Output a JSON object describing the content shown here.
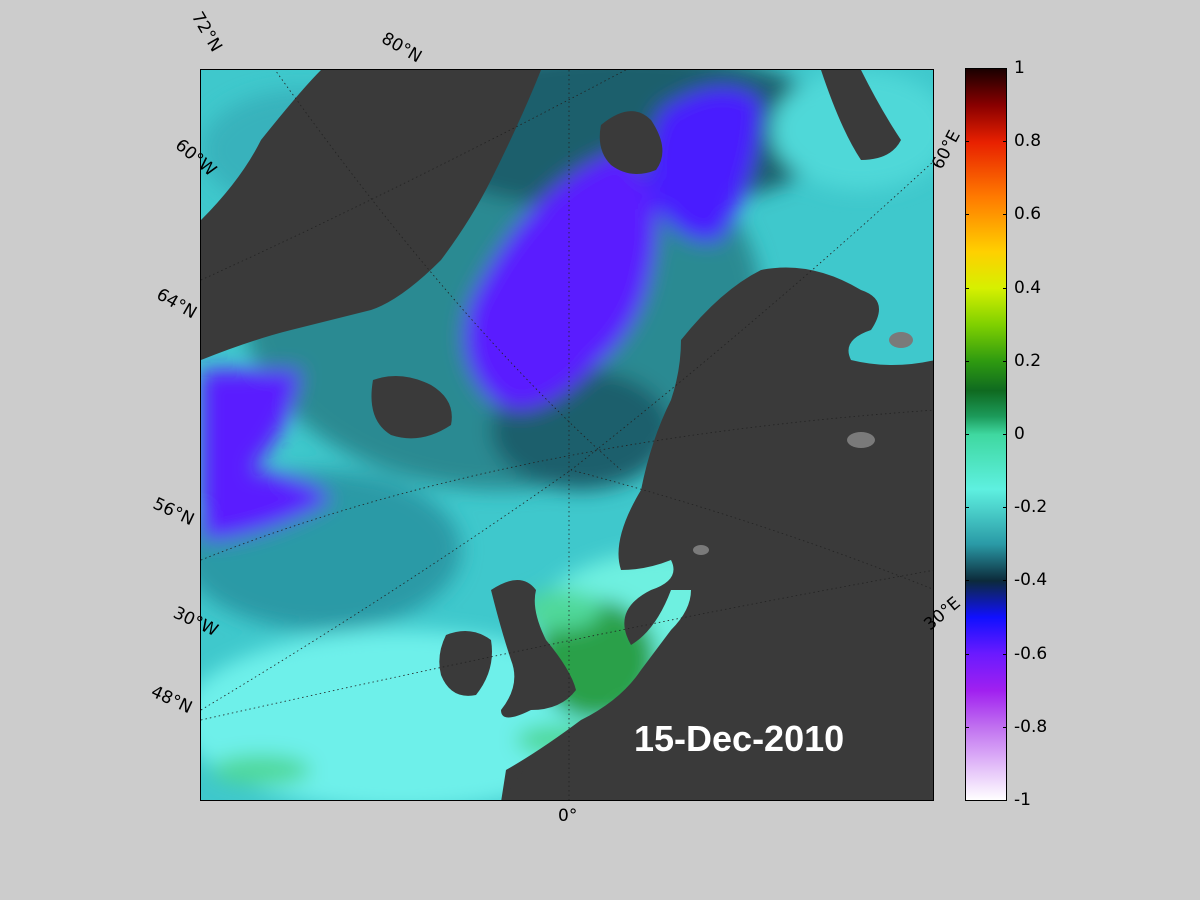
{
  "map": {
    "date": "15-Dec-2010",
    "graticule_labels": {
      "lat_72": "72°N",
      "lat_80": "80°N",
      "lon_60w": "60°W",
      "lat_64": "64°N",
      "lat_56": "56°N",
      "lon_30w": "30°W",
      "lat_48": "48°N",
      "lon_0": "0°",
      "lon_30e": "30°E",
      "lon_60e": "60°E"
    },
    "colors": {
      "background": "#cccccc",
      "land": "#3a3a3a",
      "ocean": "#3fc8cc",
      "deep_ocean": "#2a6f78",
      "negative_anomaly": "#5a1aff",
      "positive_anomaly": "#35a04a"
    }
  },
  "colorbar": {
    "ticks": [
      "1",
      "0.8",
      "0.6",
      "0.4",
      "0.2",
      "0",
      "-0.2",
      "-0.4",
      "-0.6",
      "-0.8",
      "-1"
    ],
    "tick_values": [
      1,
      0.8,
      0.6,
      0.4,
      0.2,
      0,
      -0.2,
      -0.4,
      -0.6,
      -0.8,
      -1
    ],
    "range": [
      -1,
      1
    ],
    "stops": [
      {
        "v": 1,
        "c": "#1a0000"
      },
      {
        "v": 0.9,
        "c": "#8a0000"
      },
      {
        "v": 0.8,
        "c": "#e82000"
      },
      {
        "v": 0.65,
        "c": "#ff7a00"
      },
      {
        "v": 0.5,
        "c": "#ffd000"
      },
      {
        "v": 0.4,
        "c": "#d6f000"
      },
      {
        "v": 0.3,
        "c": "#7fd000"
      },
      {
        "v": 0.2,
        "c": "#2e9a10"
      },
      {
        "v": 0.12,
        "c": "#0f6a20"
      },
      {
        "v": 0.05,
        "c": "#1c9a5a"
      },
      {
        "v": 0,
        "c": "#3fd8a0"
      },
      {
        "v": -0.15,
        "c": "#5ef0e0"
      },
      {
        "v": -0.3,
        "c": "#2a9aa6"
      },
      {
        "v": -0.4,
        "c": "#0c2a3a"
      },
      {
        "v": -0.5,
        "c": "#1010ff"
      },
      {
        "v": -0.6,
        "c": "#6a1aff"
      },
      {
        "v": -0.7,
        "c": "#a020f0"
      },
      {
        "v": -0.8,
        "c": "#c070f0"
      },
      {
        "v": -0.9,
        "c": "#e0b8f8"
      },
      {
        "v": -1,
        "c": "#ffffff"
      }
    ]
  }
}
